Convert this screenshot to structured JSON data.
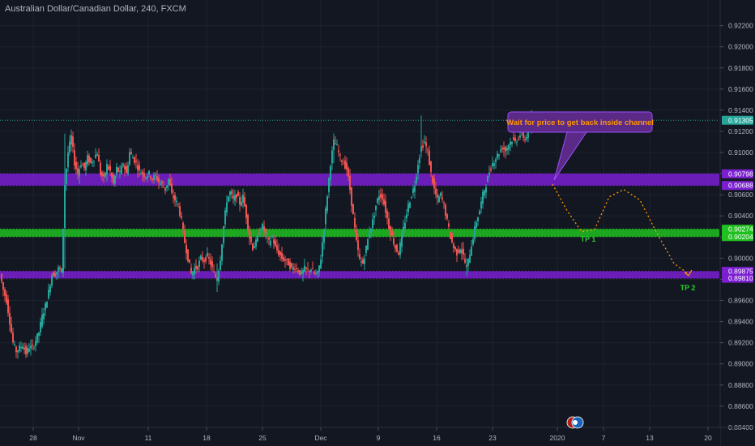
{
  "symbol": {
    "title": "Australian Dollar/Canadian Dollar, 240, FXCM"
  },
  "colors": {
    "background": "#131722",
    "up": "#26a69a",
    "down": "#ef5350",
    "grid": "#1e222d",
    "axis_text": "#b2b5be",
    "zone_purple": "#7b1fd1",
    "zone_green": "#20c020",
    "forecast": "#ff9800",
    "price_line": "#26a69a",
    "callout_bg": "#5b2a86",
    "callout_text": "#ff9800",
    "tp_text": "#2dcc2d"
  },
  "chart_data": {
    "type": "candlestick",
    "y_range": [
      0.8838,
      0.9232
    ],
    "y_ticks": [
      "0.92200",
      "0.92000",
      "0.91800",
      "0.91600",
      "0.91400",
      "0.91200",
      "0.91000",
      "0.90800",
      "0.90600",
      "0.90400",
      "0.90200",
      "0.90000",
      "0.89800",
      "0.89600",
      "0.89400",
      "0.89200",
      "0.89000",
      "0.88800",
      "0.88600",
      "0.88400"
    ],
    "x_ticks": [
      "28",
      "Nov",
      "11",
      "18",
      "25",
      "Dec",
      "9",
      "16",
      "23",
      "2020",
      "7",
      "13",
      "20"
    ],
    "current_price": "0.91305",
    "price_badges": [
      {
        "label": "0.91305",
        "value": 0.91305,
        "color": "#26a69a"
      },
      {
        "label": "0.90798",
        "value": 0.90798,
        "color": "#7b1fd1"
      },
      {
        "label": "0.90688",
        "value": 0.90688,
        "color": "#7b1fd1"
      },
      {
        "label": "0.90274",
        "value": 0.90274,
        "color": "#20c020"
      },
      {
        "label": "0.90204",
        "value": 0.90204,
        "color": "#20c020"
      },
      {
        "label": "0.89875",
        "value": 0.89875,
        "color": "#7b1fd1"
      },
      {
        "label": "0.89810",
        "value": 0.8981,
        "color": "#7b1fd1"
      }
    ],
    "zones": [
      {
        "top": 0.90798,
        "bottom": 0.90688,
        "color": "purple"
      },
      {
        "top": 0.90274,
        "bottom": 0.90204,
        "color": "green"
      },
      {
        "top": 0.89875,
        "bottom": 0.8981,
        "color": "purple"
      }
    ],
    "price_path": [
      [
        0,
        0.8985
      ],
      [
        4,
        0.897
      ],
      [
        8,
        0.896
      ],
      [
        12,
        0.894
      ],
      [
        16,
        0.892
      ],
      [
        20,
        0.8912
      ],
      [
        24,
        0.8915
      ],
      [
        28,
        0.8918
      ],
      [
        32,
        0.891
      ],
      [
        36,
        0.8916
      ],
      [
        40,
        0.8915
      ],
      [
        44,
        0.8922
      ],
      [
        48,
        0.893
      ],
      [
        52,
        0.8945
      ],
      [
        56,
        0.8955
      ],
      [
        60,
        0.8968
      ],
      [
        64,
        0.8985
      ],
      [
        68,
        0.8985
      ],
      [
        72,
        0.899
      ],
      [
        76,
        0.8988
      ],
      [
        80,
        0.907
      ],
      [
        84,
        0.91
      ],
      [
        88,
        0.9115
      ],
      [
        92,
        0.909
      ],
      [
        96,
        0.908
      ],
      [
        100,
        0.909
      ],
      [
        104,
        0.9085
      ],
      [
        108,
        0.9095
      ],
      [
        112,
        0.909
      ],
      [
        116,
        0.9095
      ],
      [
        120,
        0.91
      ],
      [
        124,
        0.908
      ],
      [
        128,
        0.9075
      ],
      [
        132,
        0.9088
      ],
      [
        136,
        0.9082
      ],
      [
        140,
        0.907
      ],
      [
        144,
        0.9085
      ],
      [
        148,
        0.908
      ],
      [
        152,
        0.909
      ],
      [
        156,
        0.908
      ],
      [
        160,
        0.91
      ],
      [
        164,
        0.9095
      ],
      [
        168,
        0.909
      ],
      [
        172,
        0.9082
      ],
      [
        176,
        0.908
      ],
      [
        180,
        0.9078
      ],
      [
        184,
        0.908
      ],
      [
        188,
        0.9075
      ],
      [
        192,
        0.9078
      ],
      [
        196,
        0.9072
      ],
      [
        200,
        0.907
      ],
      [
        204,
        0.9065
      ],
      [
        208,
        0.9075
      ],
      [
        212,
        0.906
      ],
      [
        216,
        0.9055
      ],
      [
        220,
        0.905
      ],
      [
        224,
        0.9035
      ],
      [
        228,
        0.9015
      ],
      [
        232,
        0.9
      ],
      [
        236,
        0.8985
      ],
      [
        240,
        0.899
      ],
      [
        244,
        0.8992
      ],
      [
        248,
        0.9
      ],
      [
        252,
        0.8998
      ],
      [
        256,
        0.9002
      ],
      [
        260,
        0.8995
      ],
      [
        264,
        0.8985
      ],
      [
        268,
        0.898
      ],
      [
        272,
        0.9
      ],
      [
        276,
        0.903
      ],
      [
        280,
        0.9055
      ],
      [
        284,
        0.9062
      ],
      [
        288,
        0.9055
      ],
      [
        292,
        0.906
      ],
      [
        296,
        0.9052
      ],
      [
        300,
        0.9058
      ],
      [
        304,
        0.904
      ],
      [
        308,
        0.902
      ],
      [
        312,
        0.901
      ],
      [
        316,
        0.9015
      ],
      [
        320,
        0.9025
      ],
      [
        324,
        0.903
      ],
      [
        328,
        0.9022
      ],
      [
        332,
        0.9015
      ],
      [
        336,
        0.902
      ],
      [
        340,
        0.901
      ],
      [
        344,
        0.9005
      ],
      [
        348,
        0.9
      ],
      [
        352,
        0.8998
      ],
      [
        356,
        0.8995
      ],
      [
        360,
        0.899
      ],
      [
        364,
        0.8992
      ],
      [
        368,
        0.8988
      ],
      [
        372,
        0.8985
      ],
      [
        376,
        0.899
      ],
      [
        380,
        0.8988
      ],
      [
        384,
        0.899
      ],
      [
        388,
        0.8985
      ],
      [
        392,
        0.8985
      ],
      [
        396,
        0.9
      ],
      [
        400,
        0.903
      ],
      [
        404,
        0.906
      ],
      [
        408,
        0.909
      ],
      [
        412,
        0.911
      ],
      [
        416,
        0.9105
      ],
      [
        420,
        0.9095
      ],
      [
        424,
        0.909
      ],
      [
        428,
        0.9085
      ],
      [
        432,
        0.9065
      ],
      [
        436,
        0.904
      ],
      [
        440,
        0.9015
      ],
      [
        444,
        0.8998
      ],
      [
        448,
        0.8995
      ],
      [
        452,
        0.901
      ],
      [
        456,
        0.9025
      ],
      [
        460,
        0.9035
      ],
      [
        464,
        0.905
      ],
      [
        468,
        0.906
      ],
      [
        472,
        0.9058
      ],
      [
        476,
        0.9045
      ],
      [
        480,
        0.903
      ],
      [
        484,
        0.902
      ],
      [
        488,
        0.901
      ],
      [
        492,
        0.9005
      ],
      [
        496,
        0.902
      ],
      [
        500,
        0.9035
      ],
      [
        504,
        0.905
      ],
      [
        508,
        0.906
      ],
      [
        512,
        0.907
      ],
      [
        516,
        0.909
      ],
      [
        520,
        0.9105
      ],
      [
        524,
        0.911
      ],
      [
        528,
        0.91
      ],
      [
        532,
        0.908
      ],
      [
        536,
        0.9065
      ],
      [
        540,
        0.9055
      ],
      [
        544,
        0.906
      ],
      [
        548,
        0.905
      ],
      [
        552,
        0.9035
      ],
      [
        556,
        0.902
      ],
      [
        560,
        0.901
      ],
      [
        564,
        0.9005
      ],
      [
        568,
        0.901
      ],
      [
        572,
        0.9002
      ],
      [
        576,
        0.899
      ],
      [
        580,
        0.9005
      ],
      [
        584,
        0.902
      ],
      [
        588,
        0.9035
      ],
      [
        592,
        0.9045
      ],
      [
        596,
        0.906
      ],
      [
        600,
        0.907
      ],
      [
        604,
        0.9082
      ],
      [
        608,
        0.909
      ],
      [
        612,
        0.9095
      ],
      [
        616,
        0.91
      ],
      [
        620,
        0.9105
      ],
      [
        624,
        0.9102
      ],
      [
        628,
        0.9108
      ],
      [
        632,
        0.9112
      ],
      [
        636,
        0.911
      ],
      [
        640,
        0.9115
      ],
      [
        644,
        0.9118
      ],
      [
        648,
        0.9112
      ],
      [
        652,
        0.912
      ],
      [
        656,
        0.913
      ]
    ],
    "forecast_path": [
      [
        682,
        0.907
      ],
      [
        700,
        0.9045
      ],
      [
        718,
        0.9025
      ],
      [
        734,
        0.9027
      ],
      [
        752,
        0.9058
      ],
      [
        770,
        0.9065
      ],
      [
        790,
        0.9055
      ],
      [
        810,
        0.9025
      ],
      [
        832,
        0.8995
      ],
      [
        850,
        0.8985
      ]
    ],
    "callout": {
      "text": "Wait for price to get back inside channel",
      "pointer_price": 0.9074
    },
    "targets": [
      {
        "label": "TP 1",
        "value": 0.9018
      },
      {
        "label": "TP 2",
        "value": 0.8972
      }
    ]
  },
  "icons": {
    "event_badge": "flags-icon"
  }
}
